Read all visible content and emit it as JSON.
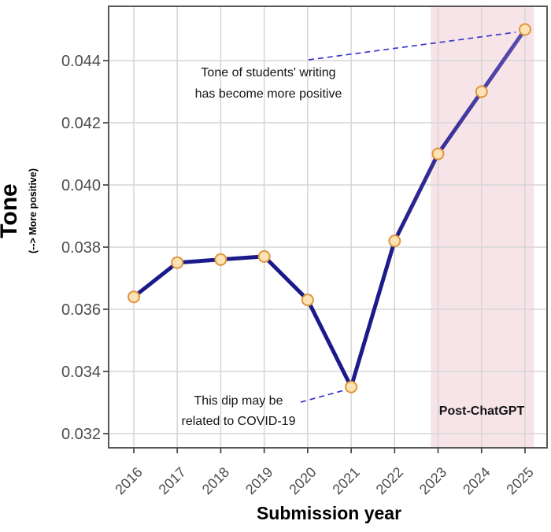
{
  "chart_data": {
    "type": "line",
    "title": "",
    "xlabel": "Submission year",
    "ylabel": "Tone",
    "ylabel_subtitle": "(--> More positive)",
    "x": [
      2016,
      2017,
      2018,
      2019,
      2020,
      2021,
      2022,
      2023,
      2024,
      2025
    ],
    "series": [
      {
        "name": "Tone",
        "values": [
          0.0364,
          0.0375,
          0.0376,
          0.0377,
          0.0363,
          0.0335,
          0.0382,
          0.041,
          0.043,
          0.045
        ]
      }
    ],
    "yticks": [
      "0.032",
      "0.034",
      "0.036",
      "0.038",
      "0.040",
      "0.042",
      "0.044"
    ],
    "ylim": [
      0.0315,
      0.0458
    ],
    "xlim": [
      2015.42,
      2025.51
    ],
    "grid": true,
    "legend": "none",
    "shaded_region": {
      "label": "Post-ChatGPT",
      "x_start": 2022.83,
      "x_end": 2025.21
    },
    "annotations": [
      {
        "id": "positive-tone",
        "lines": [
          "Tone of students' writing",
          "has become more positive"
        ]
      },
      {
        "id": "covid-dip",
        "lines": [
          "This dip may be",
          "related to COVID-19"
        ]
      }
    ]
  },
  "colors": {
    "line_navy": "#1a1a8a",
    "line_purple": "#6457b2",
    "marker_fill": "#fbe3b5",
    "marker_stroke": "#e0953e",
    "band_fill": "#f7e4e8",
    "callout_dash": "#3b35cc",
    "grid": "#d5d5d5",
    "frame": "#585858",
    "tick": "#4d4d4d"
  }
}
